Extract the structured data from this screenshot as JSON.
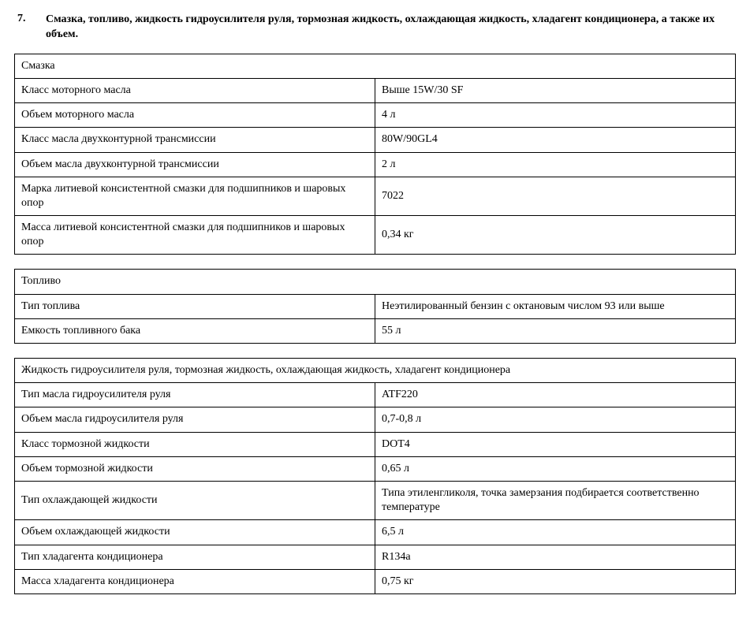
{
  "heading": {
    "number": "7.",
    "text": "Смазка, топливо, жидкость гидроусилителя руля, тормозная жидкость, охлаждающая жидкость, хладагент кондиционера, а также их объем."
  },
  "sections": [
    {
      "title": "Смазка",
      "rows": [
        {
          "label": "Класс моторного масла",
          "value": "Выше 15W/30 SF"
        },
        {
          "label": "Объем моторного масла",
          "value": "4 л"
        },
        {
          "label": "Класс масла двухконтурной трансмиссии",
          "value": "80W/90GL4"
        },
        {
          "label": "Объем масла двухконтурной трансмиссии",
          "value": "2 л"
        },
        {
          "label": "Марка литиевой консистентной смазки для подшипников и шаровых опор",
          "value": "7022"
        },
        {
          "label": "Масса литиевой консистентной смазки для подшипников и шаровых опор",
          "value": "0,34 кг"
        }
      ]
    },
    {
      "title": "Топливо",
      "rows": [
        {
          "label": "Тип топлива",
          "value": "Неэтилированный бензин с октановым числом 93 или выше"
        },
        {
          "label": "Емкость топливного бака",
          "value": "55 л"
        }
      ]
    },
    {
      "title": "Жидкость гидроусилителя руля, тормозная жидкость, охлаждающая жидкость, хладагент кондиционера",
      "rows": [
        {
          "label": "Тип масла гидроусилителя руля",
          "value": "ATF220"
        },
        {
          "label": "Объем масла гидроусилителя руля",
          "value": "0,7-0,8 л"
        },
        {
          "label": "Класс тормозной жидкости",
          "value": "DOT4"
        },
        {
          "label": "Объем тормозной жидкости",
          "value": "0,65 л"
        },
        {
          "label": "Тип охлаждающей жидкости",
          "value": "Типа этиленгликоля, точка замерзания подбирается соответственно температуре"
        },
        {
          "label": "Объем охлаждающей жидкости",
          "value": "6,5 л"
        },
        {
          "label": "Тип хладагента кондиционера",
          "value": "R134a"
        },
        {
          "label": "Масса хладагента кондиционера",
          "value": "0,75 кг"
        }
      ]
    }
  ]
}
